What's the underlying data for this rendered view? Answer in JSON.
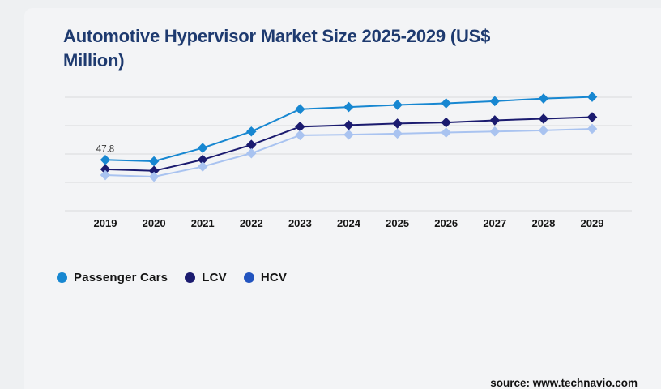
{
  "header": {
    "title_lines": [
      "Automotive Hypervisor Market Size 2025-2029 (US$",
      "Million)"
    ]
  },
  "chart_data": {
    "type": "line",
    "title": "Automotive Hypervisor Market Size 2025-2029 (US$ Million)",
    "xlabel": "",
    "ylabel": "US$ Million",
    "categories": [
      "2019",
      "2020",
      "2021",
      "2022",
      "2023",
      "2024",
      "2025",
      "2026",
      "2027",
      "2028",
      "2029"
    ],
    "series": [
      {
        "name": "Passenger Cars",
        "color": "#1787d1",
        "legend_color": "#1787d1",
        "marker": "diamond",
        "values": [
          47.8,
          46.5,
          59.0,
          74.5,
          95.5,
          97.5,
          99.5,
          101.0,
          103.0,
          105.5,
          107.0
        ]
      },
      {
        "name": "LCV",
        "color": "#1b1b6f",
        "legend_color": "#1b1b6f",
        "marker": "diamond",
        "values": [
          39.0,
          37.5,
          48.0,
          62.0,
          79.0,
          80.5,
          82.0,
          83.0,
          85.0,
          86.5,
          88.0
        ]
      },
      {
        "name": "HCV",
        "color": "#a9c3f0",
        "legend_color": "#2254bf",
        "marker": "diamond",
        "values": [
          33.5,
          32.0,
          41.5,
          54.0,
          71.0,
          71.5,
          72.5,
          73.5,
          74.5,
          75.5,
          77.0
        ]
      }
    ],
    "annotations": [
      {
        "series": "Passenger Cars",
        "category": "2019",
        "text": "47.8"
      }
    ],
    "ylim": [
      0,
      106.7
    ],
    "gridline_count": 5,
    "grid": "horizontal",
    "legend_position": "bottom-left"
  },
  "colors": {
    "title": "#1e3a6f",
    "gridline": "#d9dadc",
    "background": "#f3f4f6",
    "page_background": "#eef0f2"
  },
  "footer": {
    "source": "source: www.technavio.com"
  }
}
